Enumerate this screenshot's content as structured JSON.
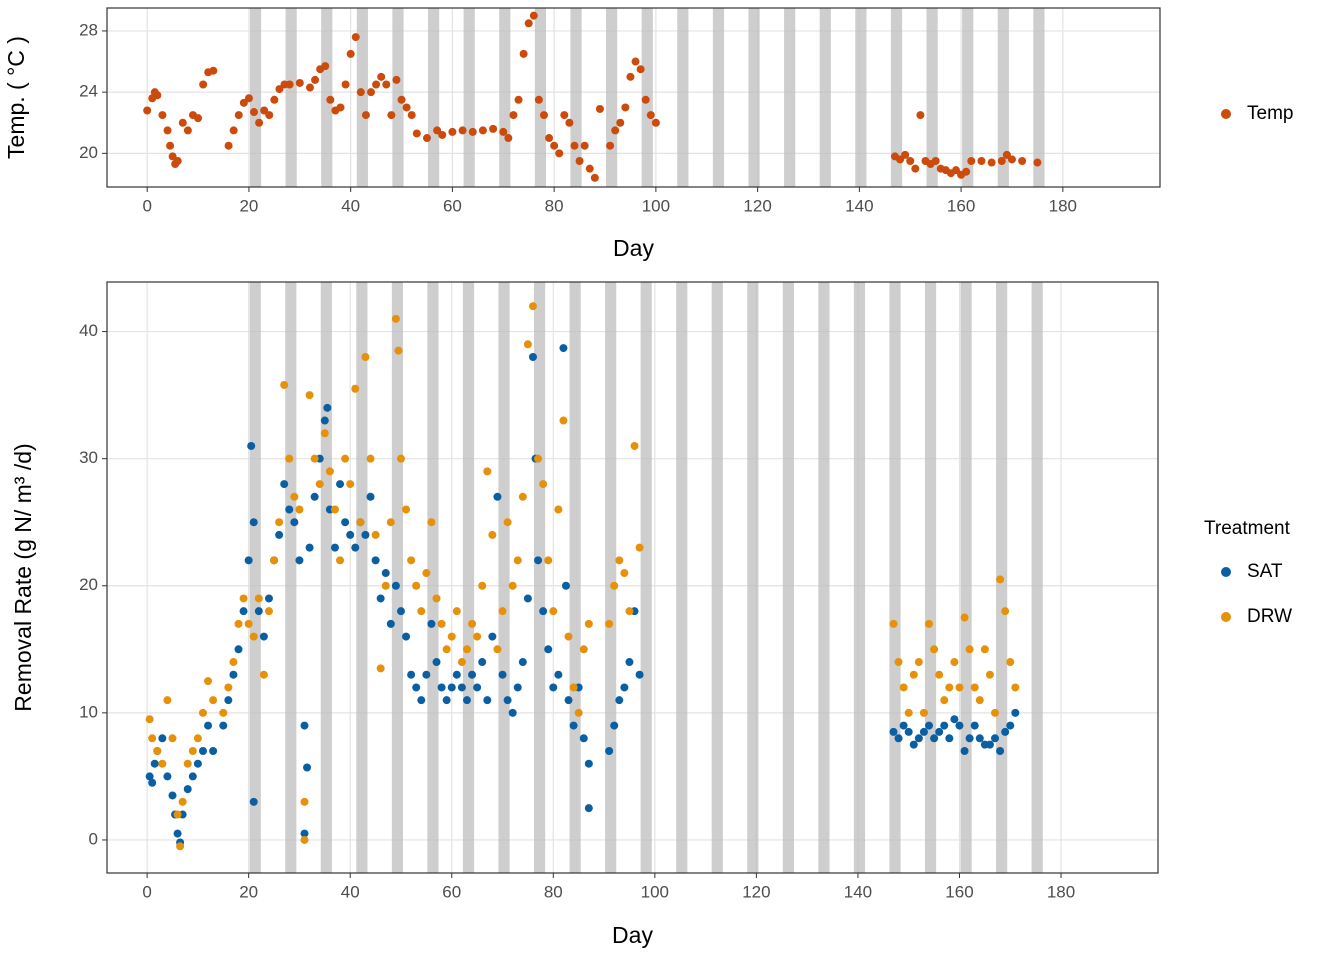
{
  "chart_data": [
    {
      "type": "scatter",
      "x_label": "Day",
      "y_label": "Temp. ( °C )",
      "xlim": [
        -7.9,
        199.1
      ],
      "xticks": [
        0,
        20,
        40,
        60,
        80,
        100,
        120,
        140,
        160,
        180
      ],
      "ylim": [
        17.8,
        29.5
      ],
      "yticks": [
        20,
        24,
        28
      ],
      "grid": true,
      "shaded_days": [
        [
          20.2,
          22.4
        ],
        [
          27.2,
          29.4
        ],
        [
          34.2,
          36.4
        ],
        [
          41.2,
          43.4
        ],
        [
          48.2,
          50.4
        ],
        [
          55.2,
          57.4
        ],
        [
          62.2,
          64.4
        ],
        [
          69.2,
          71.4
        ],
        [
          76.2,
          78.4
        ],
        [
          83.2,
          85.4
        ],
        [
          90.2,
          92.4
        ],
        [
          97.2,
          99.4
        ],
        [
          104.2,
          106.4
        ],
        [
          111.2,
          113.4
        ],
        [
          118.2,
          120.4
        ],
        [
          125.2,
          127.4
        ],
        [
          132.2,
          134.4
        ],
        [
          139.2,
          141.4
        ],
        [
          146.2,
          148.4
        ],
        [
          153.2,
          155.4
        ],
        [
          160.2,
          162.4
        ],
        [
          167.2,
          169.4
        ],
        [
          174.2,
          176.4
        ]
      ],
      "series": [
        {
          "name": "Temp",
          "color": "#cc4a0a",
          "x": [
            0,
            1,
            1.5,
            2,
            3,
            4,
            4.5,
            5,
            5.5,
            6,
            7,
            8,
            9,
            10,
            11,
            12,
            13,
            16,
            17,
            18,
            19,
            20,
            21,
            22,
            23,
            24,
            25,
            26,
            27,
            28,
            30,
            32,
            33,
            34,
            35,
            36,
            37,
            38,
            39,
            40,
            41,
            42,
            43,
            44,
            45,
            46,
            47,
            48,
            49,
            50,
            51,
            52,
            53,
            55,
            57,
            58,
            60,
            62,
            64,
            66,
            68,
            70,
            71,
            72,
            73,
            74,
            75,
            76,
            77,
            78,
            79,
            80,
            81,
            82,
            83,
            84,
            85,
            86,
            87,
            88,
            89,
            91,
            92,
            93,
            94,
            95,
            96,
            97,
            98,
            99,
            100,
            147,
            148,
            149,
            150,
            151,
            152,
            153,
            154,
            155,
            156,
            157,
            158,
            159,
            160,
            161,
            162,
            164,
            166,
            168,
            169,
            170,
            172,
            175
          ],
          "values": [
            22.8,
            23.6,
            24.0,
            23.8,
            22.5,
            21.5,
            20.5,
            19.8,
            19.3,
            19.5,
            22,
            21.5,
            22.5,
            22.3,
            24.5,
            25.3,
            25.4,
            20.5,
            21.5,
            22.5,
            23.3,
            23.6,
            22.7,
            22.0,
            22.8,
            22.5,
            23.5,
            24.2,
            24.5,
            24.5,
            24.6,
            24.3,
            24.8,
            25.5,
            25.7,
            23.5,
            22.8,
            23.0,
            24.5,
            26.5,
            27.6,
            24.0,
            22.5,
            24.0,
            24.5,
            25.0,
            24.5,
            22.5,
            24.8,
            23.5,
            23.0,
            22.5,
            21.3,
            21.0,
            21.5,
            21.2,
            21.4,
            21.5,
            21.4,
            21.5,
            21.6,
            21.4,
            21.0,
            22.5,
            23.5,
            26.5,
            28.5,
            29.0,
            23.5,
            22.5,
            21.0,
            20.5,
            20.0,
            22.5,
            22.0,
            20.5,
            19.5,
            20.5,
            19.0,
            18.4,
            22.9,
            20.5,
            21.5,
            22.0,
            23.0,
            25.0,
            26.0,
            25.5,
            23.5,
            22.5,
            22.0,
            19.8,
            19.6,
            19.9,
            19.5,
            19.0,
            22.5,
            19.5,
            19.3,
            19.5,
            19.0,
            18.9,
            18.7,
            18.9,
            18.6,
            18.8,
            19.5,
            19.5,
            19.4,
            19.5,
            19.9,
            19.6,
            19.5,
            19.4
          ]
        }
      ]
    },
    {
      "type": "scatter",
      "x_label": "Day",
      "y_label": "Removal Rate (g N/ m³ /d)",
      "legend_title": "Treatment",
      "xlim": [
        -7.9,
        199.1
      ],
      "xticks": [
        0,
        20,
        40,
        60,
        80,
        100,
        120,
        140,
        160,
        180
      ],
      "ylim": [
        -2.6,
        43.9
      ],
      "yticks": [
        0,
        10,
        20,
        30,
        40
      ],
      "grid": true,
      "shaded_days": [
        [
          20.2,
          22.4
        ],
        [
          27.2,
          29.4
        ],
        [
          34.2,
          36.4
        ],
        [
          41.2,
          43.4
        ],
        [
          48.2,
          50.4
        ],
        [
          55.2,
          57.4
        ],
        [
          62.2,
          64.4
        ],
        [
          69.2,
          71.4
        ],
        [
          76.2,
          78.4
        ],
        [
          83.2,
          85.4
        ],
        [
          90.2,
          92.4
        ],
        [
          97.2,
          99.4
        ],
        [
          104.2,
          106.4
        ],
        [
          111.2,
          113.4
        ],
        [
          118.2,
          120.4
        ],
        [
          125.2,
          127.4
        ],
        [
          132.2,
          134.4
        ],
        [
          139.2,
          141.4
        ],
        [
          146.2,
          148.4
        ],
        [
          153.2,
          155.4
        ],
        [
          160.2,
          162.4
        ],
        [
          167.2,
          169.4
        ],
        [
          174.2,
          176.4
        ]
      ],
      "series": [
        {
          "name": "SAT",
          "color": "#0a5fa3",
          "x": [
            0.5,
            1,
            1.5,
            2,
            3,
            4,
            5,
            5.5,
            6,
            6.5,
            7,
            8,
            9,
            10,
            11,
            12,
            13,
            15,
            16,
            17,
            18,
            19,
            20,
            20.5,
            21,
            21,
            22,
            23,
            24,
            25,
            26,
            27,
            28,
            29,
            30,
            31,
            31,
            31.5,
            32,
            33,
            34,
            35,
            35.5,
            36,
            37,
            38,
            39,
            40,
            41,
            42,
            43,
            44,
            45,
            46,
            47,
            48,
            49,
            50,
            51,
            52,
            53,
            54,
            55,
            56,
            57,
            58,
            59,
            60,
            61,
            62,
            63,
            64,
            65,
            66,
            67,
            68,
            69,
            70,
            71,
            72,
            73,
            74,
            75,
            76,
            76.5,
            77,
            78,
            79,
            80,
            81,
            82,
            82.5,
            83,
            84,
            85,
            86,
            87,
            87,
            91,
            92,
            93,
            94,
            95,
            96,
            97,
            147,
            148,
            149,
            150,
            151,
            152,
            153,
            154,
            155,
            156,
            157,
            158,
            159,
            160,
            161,
            162,
            163,
            164,
            165,
            166,
            167,
            168,
            169,
            170,
            171
          ],
          "values": [
            5,
            4.5,
            6,
            7,
            8,
            5,
            3.5,
            2,
            0.5,
            -0.2,
            2,
            4,
            5,
            6,
            7,
            9,
            7,
            9,
            11,
            13,
            15,
            18,
            22,
            31,
            25,
            3,
            18,
            16,
            19,
            22,
            24,
            28,
            26,
            25,
            22,
            9,
            0.5,
            5.7,
            23,
            27,
            30,
            33,
            34,
            26,
            23,
            28,
            25,
            24,
            23,
            25,
            24,
            27,
            22,
            19,
            21,
            17,
            20,
            18,
            16,
            13,
            12,
            11,
            13,
            17,
            14,
            12,
            11,
            12,
            13,
            12,
            11,
            13,
            12,
            14,
            11,
            16,
            27,
            13,
            11,
            10,
            12,
            14,
            19,
            38,
            30,
            22,
            18,
            15,
            12,
            13,
            38.7,
            20,
            11,
            9,
            12,
            8,
            2.5,
            6,
            7,
            9,
            11,
            12,
            14,
            18,
            13,
            8.5,
            8,
            9,
            8.5,
            7.5,
            8,
            8.5,
            9,
            8,
            8.5,
            9,
            8,
            9.5,
            9,
            7,
            8,
            9,
            8,
            7.5,
            7.5,
            8,
            7,
            8.5,
            9,
            10
          ]
        },
        {
          "name": "DRW",
          "color": "#e69109",
          "x": [
            0.5,
            1,
            2,
            3,
            4,
            5,
            6,
            6.5,
            7,
            8,
            9,
            10,
            11,
            12,
            13,
            15,
            16,
            17,
            18,
            19,
            20,
            21,
            22,
            23,
            24,
            25,
            26,
            27,
            28,
            29,
            30,
            31,
            31,
            32,
            33,
            34,
            35,
            36,
            37,
            38,
            39,
            40,
            41,
            42,
            43,
            44,
            45,
            46,
            47,
            48,
            49,
            49.5,
            50,
            51,
            52,
            53,
            54,
            55,
            56,
            57,
            58,
            59,
            60,
            61,
            62,
            63,
            64,
            65,
            66,
            67,
            68,
            69,
            70,
            71,
            72,
            73,
            74,
            75,
            76,
            77,
            78,
            79,
            80,
            81,
            82,
            83,
            84,
            85,
            86,
            87,
            91,
            92,
            93,
            94,
            95,
            96,
            97,
            147,
            148,
            149,
            150,
            151,
            152,
            153,
            154,
            155,
            156,
            157,
            158,
            159,
            160,
            161,
            162,
            163,
            164,
            165,
            166,
            167,
            168,
            169,
            170,
            171
          ],
          "values": [
            9.5,
            8,
            7,
            6,
            11,
            8,
            2,
            -0.5,
            3,
            6,
            7,
            8,
            10,
            12.5,
            11,
            10,
            12,
            14,
            17,
            19,
            17,
            16,
            19,
            13,
            18,
            22,
            25,
            35.8,
            30,
            27,
            26,
            3,
            0,
            35,
            30,
            28,
            32,
            29,
            26,
            22,
            30,
            28,
            35.5,
            25,
            38,
            30,
            24,
            13.5,
            20,
            25,
            41,
            38.5,
            30,
            26,
            22,
            20,
            18,
            21,
            25,
            19,
            17,
            15,
            16,
            18,
            14,
            15,
            17,
            16,
            20,
            29,
            24,
            15,
            18,
            25,
            20,
            22,
            27,
            39,
            42,
            30,
            28,
            22,
            18,
            26,
            33,
            16,
            12,
            10,
            15,
            17,
            17,
            20,
            22,
            21,
            18,
            31,
            23,
            17,
            14,
            12,
            10,
            13,
            14,
            10,
            17,
            15,
            13,
            11,
            12,
            14,
            12,
            17.5,
            15,
            12,
            11,
            15,
            13,
            10,
            20.5,
            18,
            14,
            12
          ]
        }
      ]
    }
  ]
}
